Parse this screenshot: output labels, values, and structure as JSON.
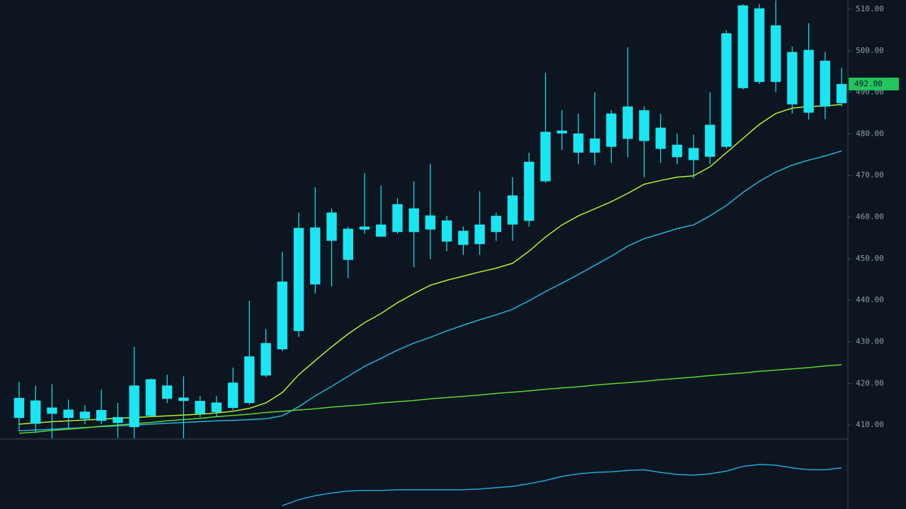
{
  "chart_data": {
    "type": "candlestick",
    "open": [
      416.5,
      410.3,
      414.2,
      413.7,
      411.5,
      413.6,
      411.9,
      409.5,
      412.2,
      419.5,
      416.6,
      415.8,
      413.1,
      414.1,
      415.3,
      421.9,
      428.2,
      432.6,
      457.5,
      454.3,
      457.2,
      457.0,
      455.3,
      456.4,
      462.1,
      460.4,
      459.2,
      456.7,
      453.5,
      456.4,
      458.2,
      459.1,
      468.6,
      480.8,
      480.1,
      475.5,
      476.9,
      478.8,
      485.7,
      481.5,
      477.4,
      476.6,
      474.5,
      476.9,
      491.0,
      510.2,
      506.1,
      499.7,
      485.1,
      497.6,
      487.4
    ],
    "high": [
      420.4,
      419.5,
      419.8,
      416.1,
      414.8,
      418.5,
      415.3,
      428.8,
      421.2,
      422.1,
      421.7,
      417.0,
      417.0,
      423.8,
      439.9,
      433.1,
      451.6,
      461.1,
      467.2,
      462.0,
      457.7,
      470.6,
      467.6,
      464.5,
      468.6,
      472.8,
      460.3,
      457.7,
      466.2,
      461.1,
      469.6,
      475.5,
      494.6,
      485.7,
      484.9,
      490.0,
      485.7,
      500.8,
      486.6,
      484.9,
      480.1,
      479.8,
      490.0,
      504.9,
      511.2,
      511.2,
      512.1,
      501.0,
      506.6,
      499.7,
      495.9
    ],
    "low": [
      408.5,
      408.1,
      406.8,
      409.3,
      410.2,
      410.2,
      406.9,
      406.8,
      411.9,
      415.3,
      406.8,
      411.9,
      411.9,
      413.6,
      414.9,
      421.5,
      427.8,
      431.2,
      441.6,
      443.3,
      445.3,
      456.0,
      455.2,
      456.0,
      447.9,
      449.9,
      451.8,
      450.9,
      450.9,
      454.3,
      454.3,
      457.7,
      468.2,
      476.1,
      472.7,
      472.5,
      473.0,
      474.4,
      469.6,
      473.0,
      472.7,
      469.3,
      472.7,
      476.4,
      490.7,
      492.0,
      490.0,
      484.9,
      483.5,
      483.5,
      486.6
    ],
    "close": [
      411.7,
      415.9,
      412.7,
      411.7,
      413.2,
      411.0,
      410.5,
      419.5,
      421.0,
      416.3,
      415.8,
      412.7,
      415.4,
      420.2,
      426.5,
      429.7,
      444.5,
      457.4,
      443.8,
      461.1,
      449.7,
      457.7,
      458.2,
      463.1,
      456.4,
      457.0,
      454.1,
      453.3,
      458.2,
      460.3,
      465.2,
      473.3,
      480.5,
      480.1,
      475.5,
      478.9,
      484.9,
      486.6,
      478.3,
      476.4,
      474.4,
      473.7,
      482.2,
      504.2,
      510.9,
      492.5,
      492.5,
      487.1,
      500.2,
      486.6,
      492.0
    ],
    "color": "#19e6f2",
    "series": [
      {
        "color": "#b8f02a",
        "values": [
          410.2,
          410.5,
          410.8,
          411.0,
          411.2,
          411.4,
          411.6,
          411.8,
          412.0,
          412.2,
          412.4,
          412.6,
          412.9,
          413.3,
          414.0,
          415.3,
          417.8,
          422.1,
          425.5,
          428.8,
          431.9,
          434.6,
          436.8,
          439.4,
          441.6,
          443.6,
          444.8,
          445.8,
          446.8,
          447.7,
          448.9,
          451.8,
          455.2,
          458.1,
          460.3,
          462.0,
          463.7,
          465.7,
          467.9,
          468.8,
          469.6,
          469.9,
          472.1,
          475.5,
          478.9,
          482.3,
          484.9,
          486.2,
          486.6,
          486.7,
          487.1
        ]
      },
      {
        "color": "#1fb4d8",
        "values": [
          408.6,
          408.8,
          409.0,
          409.2,
          409.4,
          409.6,
          409.8,
          410.0,
          410.2,
          410.4,
          410.6,
          410.8,
          411.0,
          411.1,
          411.3,
          411.5,
          412.2,
          414.4,
          417.0,
          419.3,
          421.7,
          424.1,
          426.0,
          428.0,
          429.7,
          431.1,
          432.6,
          434.0,
          435.3,
          436.5,
          437.8,
          439.9,
          442.1,
          444.1,
          446.2,
          448.4,
          450.6,
          453.0,
          454.8,
          456.0,
          457.2,
          458.1,
          460.3,
          462.8,
          465.9,
          468.6,
          470.8,
          472.5,
          473.7,
          474.7,
          475.9
        ]
      },
      {
        "color": "#5ed62a",
        "values": [
          408.0,
          408.3,
          408.7,
          409.0,
          409.3,
          409.7,
          410.0,
          410.3,
          410.6,
          411.0,
          411.3,
          411.6,
          412.0,
          412.3,
          412.6,
          413.0,
          413.3,
          413.6,
          413.9,
          414.3,
          414.6,
          414.9,
          415.3,
          415.6,
          415.9,
          416.3,
          416.6,
          416.9,
          417.2,
          417.6,
          417.9,
          418.2,
          418.6,
          418.9,
          419.2,
          419.6,
          419.9,
          420.2,
          420.5,
          420.9,
          421.2,
          421.5,
          421.9,
          422.2,
          422.5,
          422.9,
          423.2,
          423.5,
          423.8,
          424.2,
          424.5
        ]
      }
    ],
    "ylim": [
      406.8,
      512.2
    ],
    "yticks": [
      {
        "value": 410,
        "label": "410.00"
      },
      {
        "value": 420,
        "label": "420.00"
      },
      {
        "value": 430,
        "label": "430.00"
      },
      {
        "value": 440,
        "label": "440.00"
      },
      {
        "value": 450,
        "label": "450.00"
      },
      {
        "value": 460,
        "label": "460.00"
      },
      {
        "value": 470,
        "label": "470.00"
      },
      {
        "value": 480,
        "label": "480.00"
      },
      {
        "value": 490,
        "label": "490.00"
      },
      {
        "value": 500,
        "label": "500.00"
      },
      {
        "value": 510,
        "label": "510.00"
      }
    ],
    "last_price": {
      "value": 492.0,
      "label": "492.00",
      "color": "#22c55e"
    },
    "indicator": {
      "color": "#1fa8d8",
      "ylim": [
        0,
        100
      ],
      "values": [
        null,
        null,
        null,
        null,
        null,
        null,
        null,
        null,
        null,
        null,
        null,
        null,
        null,
        null,
        null,
        null,
        5,
        14,
        20,
        24,
        27,
        28,
        28,
        29,
        29,
        29,
        29,
        29,
        30,
        32,
        34,
        38,
        43,
        49,
        53,
        55,
        56,
        58,
        59,
        55,
        52,
        51,
        53,
        57,
        64,
        67,
        66,
        62,
        59,
        59,
        62
      ]
    }
  }
}
